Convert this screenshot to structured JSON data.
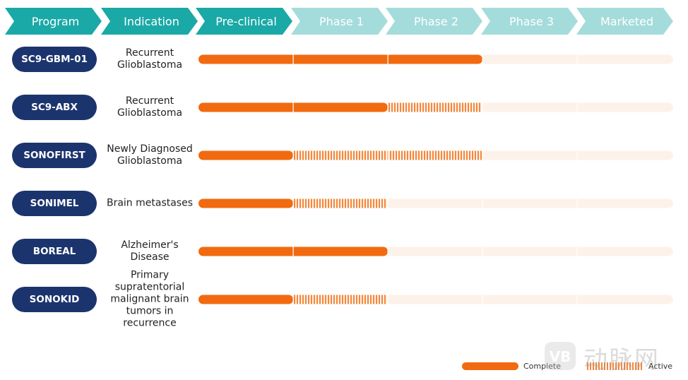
{
  "colors": {
    "header_dark": "#1aa9a7",
    "header_light": "#a4dcdb",
    "pill": "#1c346e",
    "complete": "#f26a0f",
    "active": "#f5863a",
    "track": "#fdf2ea"
  },
  "chart_data": {
    "type": "table",
    "stages": [
      "Program",
      "Indication",
      "Pre-clinical",
      "Phase 1",
      "Phase 2",
      "Phase 3",
      "Marketed"
    ],
    "programs": [
      {
        "name": "SC9-GBM-01",
        "indication": [
          "Recurrent",
          "Glioblastoma"
        ],
        "complete": 3,
        "active": 0
      },
      {
        "name": "SC9-ABX",
        "indication": [
          "Recurrent",
          "Glioblastoma"
        ],
        "complete": 2,
        "active": 1
      },
      {
        "name": "SONOFIRST",
        "indication": [
          "Newly Diagnosed",
          "Glioblastoma"
        ],
        "complete": 1,
        "active": 2
      },
      {
        "name": "SONIMEL",
        "indication": [
          "Brain metastases"
        ],
        "complete": 1,
        "active": 1
      },
      {
        "name": "BOREAL",
        "indication": [
          "Alzheimer's",
          "Disease"
        ],
        "complete": 2,
        "active": 0
      },
      {
        "name": "SONOKID",
        "indication": [
          "Primary",
          "supratentorial",
          "malignant brain",
          "tumors in",
          "recurrence"
        ],
        "complete": 1,
        "active": 1
      }
    ],
    "legend": {
      "complete": "Complete",
      "active": "Active"
    }
  },
  "watermark": {
    "text": "动脉网",
    "logo_letters": "VB"
  }
}
